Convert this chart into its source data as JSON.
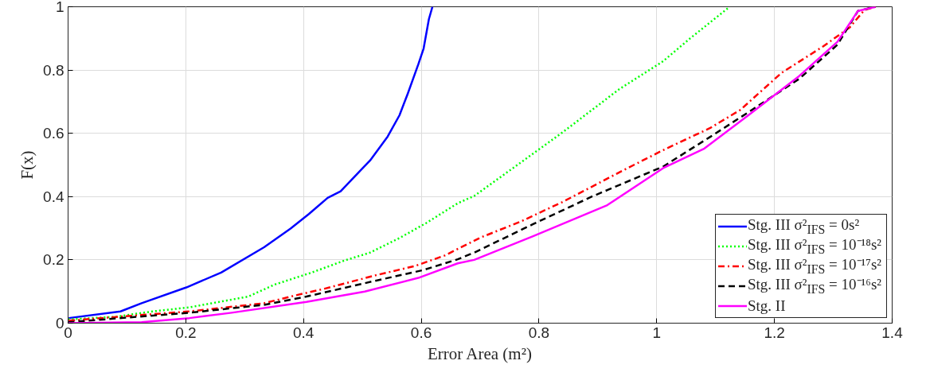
{
  "chart_data": {
    "type": "line",
    "xlabel": "Error Area (m²)",
    "ylabel": "F(x)",
    "xlim": [
      0,
      1.4
    ],
    "ylim": [
      0,
      1
    ],
    "xticks": [
      0,
      0.2,
      0.4,
      0.6,
      0.8,
      1,
      1.2,
      1.4
    ],
    "yticks": [
      0,
      0.2,
      0.4,
      0.6,
      0.8,
      1
    ],
    "grid": true,
    "legend": "bottom right",
    "marker": "none",
    "series": [
      {
        "name": "Stg. III σ²$_{IFS}$ = 0s²",
        "color": "#0000ff",
        "line_style": "solid",
        "x": [
          0.001,
          0.089,
          0.125,
          0.201,
          0.26,
          0.333,
          0.378,
          0.409,
          0.441,
          0.463,
          0.5,
          0.513,
          0.543,
          0.563,
          0.577,
          0.595,
          0.604,
          0.613,
          0.619
        ],
        "values": [
          0.016,
          0.037,
          0.063,
          0.113,
          0.16,
          0.24,
          0.299,
          0.345,
          0.396,
          0.417,
          0.489,
          0.514,
          0.59,
          0.657,
          0.725,
          0.818,
          0.868,
          0.961,
          1.0
        ]
      },
      {
        "name": "Stg. III σ²$_{IFS}$ = 10⁻¹⁸s²",
        "color": "#00ff00",
        "line_style": "dotted",
        "x": [
          0,
          0.08,
          0.143,
          0.206,
          0.306,
          0.351,
          0.414,
          0.468,
          0.513,
          0.563,
          0.608,
          0.662,
          0.69,
          0.77,
          0.84,
          0.936,
          1.011,
          1.056,
          1.124
        ],
        "values": [
          0.012,
          0.02,
          0.037,
          0.05,
          0.084,
          0.122,
          0.16,
          0.197,
          0.223,
          0.269,
          0.316,
          0.379,
          0.402,
          0.509,
          0.603,
          0.739,
          0.828,
          0.899,
          1.0
        ]
      },
      {
        "name": "Stg. III σ²$_{IFS}$ = 10⁻¹⁷s²",
        "color": "#ff0000",
        "line_style": "dashdot",
        "x": [
          0.001,
          0.147,
          0.206,
          0.333,
          0.387,
          0.436,
          0.522,
          0.59,
          0.64,
          0.7,
          0.77,
          0.84,
          0.941,
          1.011,
          1.091,
          1.142,
          1.212,
          1.283,
          1.328,
          1.353,
          1.372
        ],
        "values": [
          0.008,
          0.029,
          0.037,
          0.063,
          0.088,
          0.109,
          0.151,
          0.181,
          0.214,
          0.27,
          0.322,
          0.383,
          0.481,
          0.547,
          0.617,
          0.674,
          0.791,
          0.875,
          0.935,
          0.99,
          1.0
        ]
      },
      {
        "name": "Stg. III σ²$_{IFS}$ = 10⁻¹⁶s²",
        "color": "#000000",
        "line_style": "dashed",
        "x": [
          0,
          0.206,
          0.333,
          0.405,
          0.522,
          0.604,
          0.662,
          0.69,
          0.79,
          0.891,
          1.011,
          1.091,
          1.157,
          1.242,
          1.307,
          1.342,
          1.372
        ],
        "values": [
          0.003,
          0.033,
          0.058,
          0.084,
          0.134,
          0.168,
          0.202,
          0.223,
          0.313,
          0.401,
          0.495,
          0.589,
          0.668,
          0.772,
          0.88,
          0.987,
          1.0
        ]
      },
      {
        "name": "Stg. II",
        "color": "#ff00ff",
        "line_style": "solid",
        "x": [
          0,
          0.125,
          0.206,
          0.278,
          0.405,
          0.504,
          0.595,
          0.662,
          0.69,
          0.79,
          0.916,
          1.011,
          1.081,
          1.157,
          1.242,
          1.307,
          1.342,
          1.372
        ],
        "values": [
          0,
          0.003,
          0.016,
          0.033,
          0.067,
          0.1,
          0.143,
          0.189,
          0.2,
          0.275,
          0.373,
          0.49,
          0.552,
          0.659,
          0.781,
          0.889,
          0.987,
          1.0
        ]
      }
    ]
  }
}
